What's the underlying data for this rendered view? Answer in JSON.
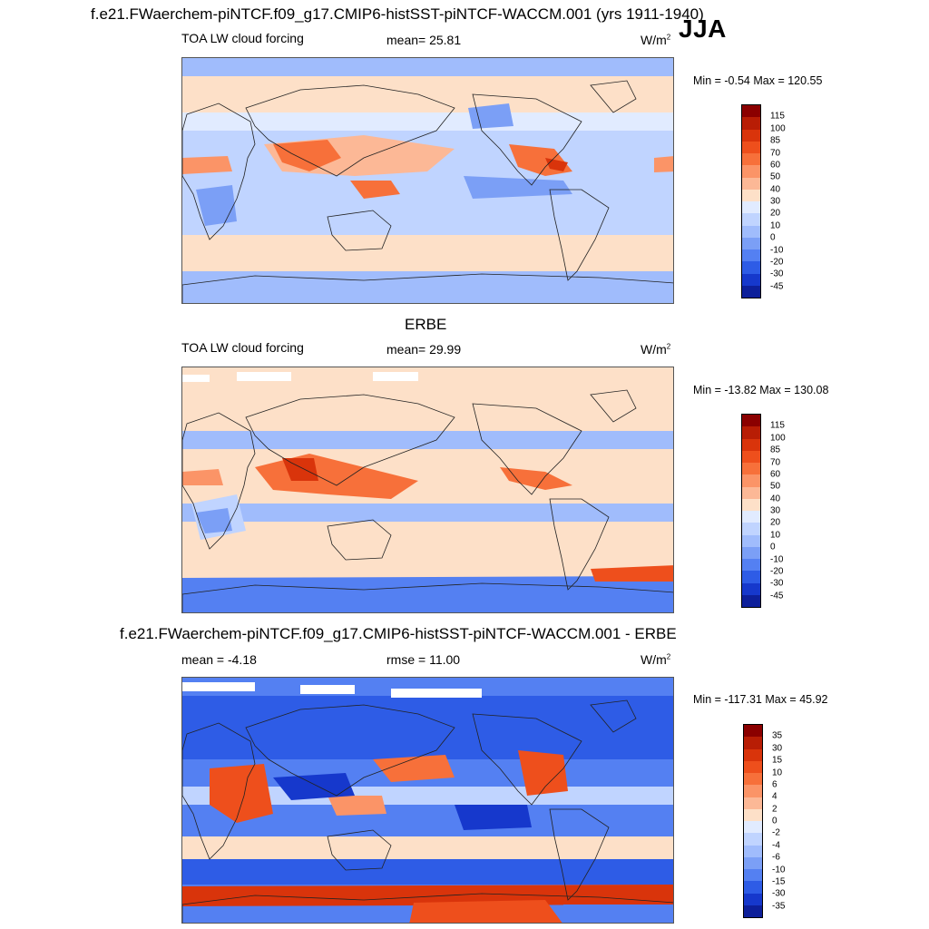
{
  "header": {
    "title": "f.e21.FWaerchem-piNTCF.f09_g17.CMIP6-histSST-piNTCF-WACCM.001 (yrs 1911-1940)",
    "season": "JJA"
  },
  "panels": [
    {
      "id": "model",
      "section_title": "",
      "left_label": "TOA LW cloud forcing",
      "center_label": "mean=  25.81",
      "units": "W/m",
      "units_sup": "2",
      "minmax": "Min =  -0.54 Max = 120.55",
      "colorbar": {
        "labels": [
          "115",
          "100",
          "85",
          "70",
          "60",
          "50",
          "40",
          "30",
          "20",
          "10",
          "0",
          "-10",
          "-20",
          "-30",
          "-45"
        ],
        "colors": [
          "#8b0000",
          "#b81d05",
          "#d9340b",
          "#ee4f1c",
          "#f7703a",
          "#fb9467",
          "#fcb896",
          "#fde0c8",
          "#e1ebff",
          "#c0d4ff",
          "#a0bcfc",
          "#7b9ff6",
          "#5480f2",
          "#2e5ce6",
          "#1638cc",
          "#0d1f9a"
        ]
      },
      "map": {
        "base_color": "#c0d4ff"
      }
    },
    {
      "id": "obs",
      "section_title": "ERBE",
      "left_label": "TOA LW cloud forcing",
      "center_label": "mean=  29.99",
      "units": "W/m",
      "units_sup": "2",
      "minmax": "Min = -13.82 Max = 130.08",
      "colorbar": {
        "labels": [
          "115",
          "100",
          "85",
          "70",
          "60",
          "50",
          "40",
          "30",
          "20",
          "10",
          "0",
          "-10",
          "-20",
          "-30",
          "-45"
        ],
        "colors": [
          "#8b0000",
          "#b81d05",
          "#d9340b",
          "#ee4f1c",
          "#f7703a",
          "#fb9467",
          "#fcb896",
          "#fde0c8",
          "#e1ebff",
          "#c0d4ff",
          "#a0bcfc",
          "#7b9ff6",
          "#5480f2",
          "#2e5ce6",
          "#1638cc",
          "#0d1f9a"
        ]
      },
      "map": {
        "base_color": "#fde0c8"
      }
    },
    {
      "id": "diff",
      "section_title": "f.e21.FWaerchem-piNTCF.f09_g17.CMIP6-histSST-piNTCF-WACCM.001 - ERBE",
      "left_label": "mean =  -4.18",
      "center_label": "rmse =  11.00",
      "units": "W/m",
      "units_sup": "2",
      "minmax": "Min = -117.31 Max =  45.92",
      "colorbar": {
        "labels": [
          "35",
          "30",
          "15",
          "10",
          "6",
          "4",
          "2",
          "0",
          "-2",
          "-4",
          "-6",
          "-10",
          "-15",
          "-30",
          "-35"
        ],
        "colors": [
          "#8b0000",
          "#b81d05",
          "#d9340b",
          "#ee4f1c",
          "#f7703a",
          "#fb9467",
          "#fcb896",
          "#fde0c8",
          "#e1ebff",
          "#c0d4ff",
          "#a0bcfc",
          "#7b9ff6",
          "#5480f2",
          "#2e5ce6",
          "#1638cc",
          "#0d1f9a"
        ]
      },
      "map": {
        "base_color": "#5480f2"
      }
    }
  ]
}
